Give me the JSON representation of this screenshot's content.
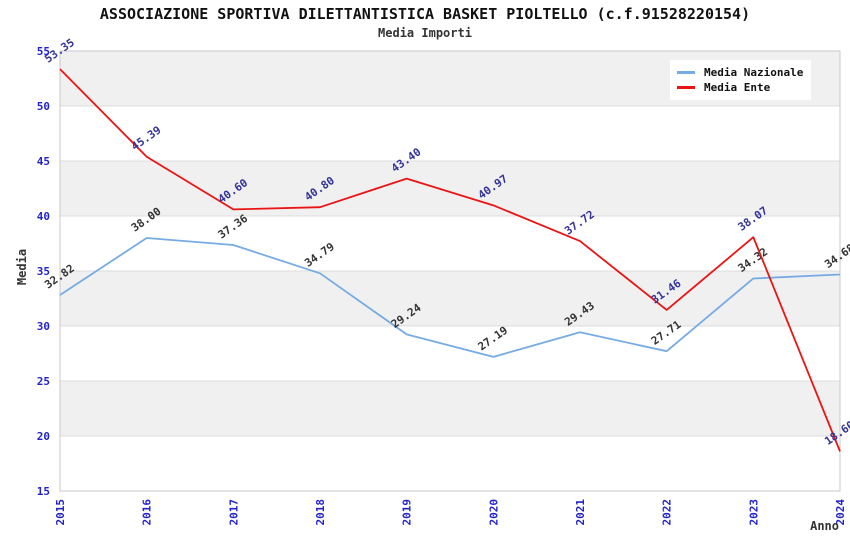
{
  "header": {
    "title": "ASSOCIAZIONE SPORTIVA DILETTANTISTICA BASKET PIOLTELLO (c.f.91528220154)",
    "subtitle": "Media Importi"
  },
  "chart_data": {
    "type": "line",
    "x": [
      2015,
      2016,
      2017,
      2018,
      2019,
      2020,
      2021,
      2022,
      2023,
      2024
    ],
    "xlabel": "Anno",
    "ylabel": "Media",
    "ylim": [
      15,
      55
    ],
    "ytick_step": 5,
    "grid": "horizontal",
    "background_bands": "alternating-gray-white",
    "legend_position": "top-right-inside",
    "point_label_format": "2-decimals",
    "series": [
      {
        "name": "Media Nazionale",
        "color": "#76ABE3",
        "label_color": "#333333",
        "values": [
          32.82,
          38.0,
          37.36,
          34.79,
          29.24,
          27.19,
          29.43,
          27.71,
          34.32,
          34.68
        ]
      },
      {
        "name": "Media Ente",
        "color": "#EB1414",
        "label_color": "#333399",
        "values": [
          53.35,
          45.39,
          40.6,
          40.8,
          43.4,
          40.97,
          37.72,
          31.46,
          38.07,
          18.6
        ]
      }
    ]
  },
  "style": {
    "tick_color": "#2222CC",
    "band_color": "#F0F0F0",
    "grid_color": "#DCDCDC",
    "border_color": "#C8C8C8"
  }
}
